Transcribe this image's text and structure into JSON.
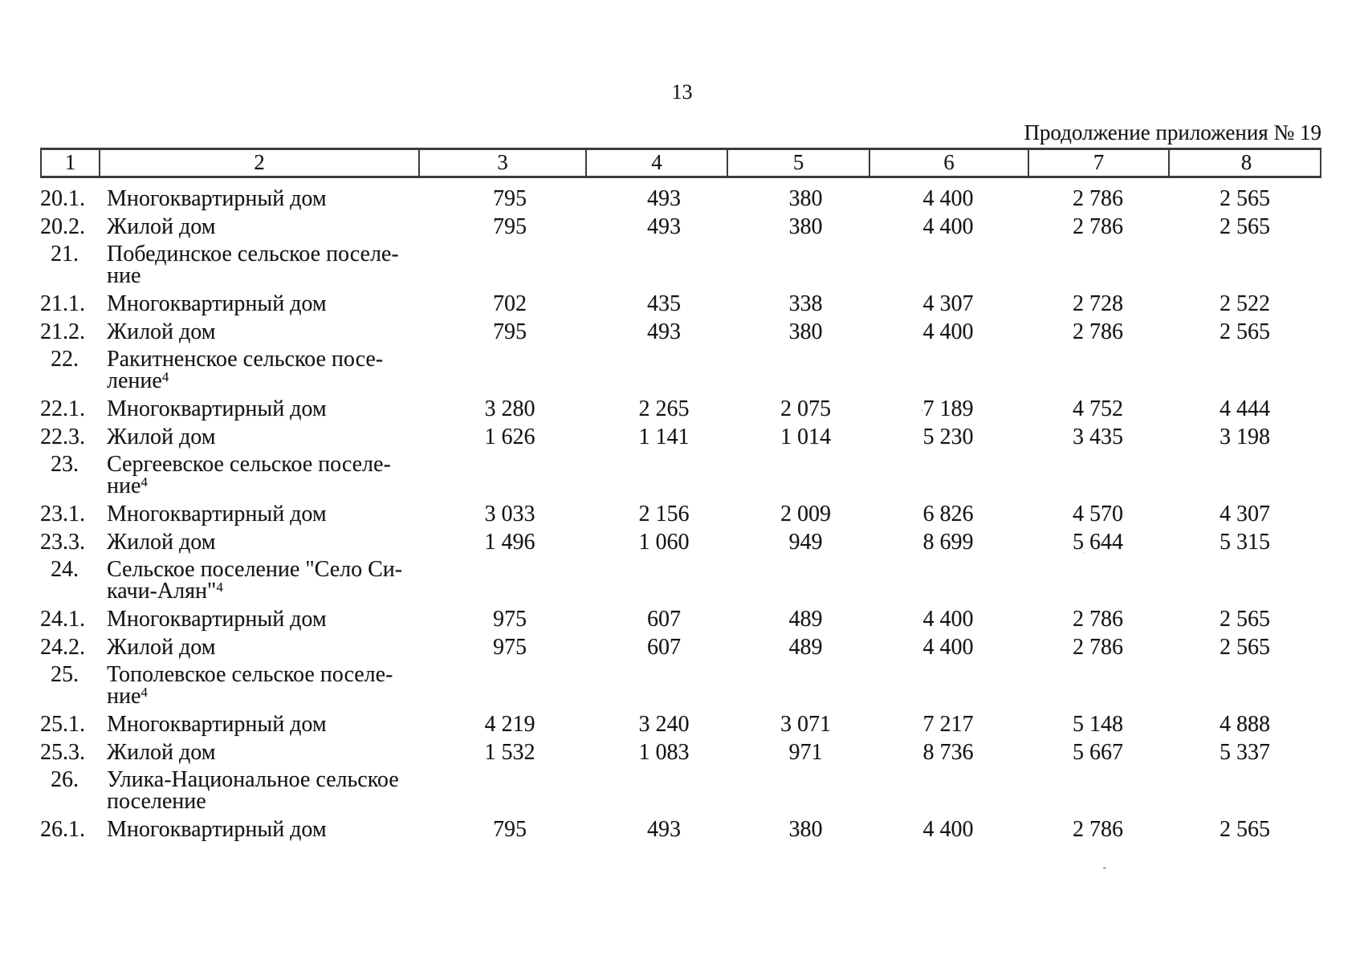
{
  "page": {
    "number": "13",
    "continuation": "Продолжение приложения № 19"
  },
  "table": {
    "header": [
      "1",
      "2",
      "3",
      "4",
      "5",
      "6",
      "7",
      "8"
    ],
    "rows": [
      {
        "num": "20.1.",
        "name": "Многоквартирный дом",
        "values": [
          "795",
          "493",
          "380",
          "4 400",
          "2 786",
          "2 565"
        ]
      },
      {
        "num": "20.2.",
        "name": "Жилой дом",
        "values": [
          "795",
          "493",
          "380",
          "4 400",
          "2 786",
          "2 565"
        ]
      },
      {
        "num": "21.",
        "name_lines": [
          "Побединское сельское поселе-",
          "ние"
        ],
        "sup": "",
        "values": []
      },
      {
        "num": "21.1.",
        "name": "Многоквартирный дом",
        "values": [
          "702",
          "435",
          "338",
          "4 307",
          "2 728",
          "2 522"
        ]
      },
      {
        "num": "21.2.",
        "name": "Жилой дом",
        "values": [
          "795",
          "493",
          "380",
          "4 400",
          "2 786",
          "2 565"
        ]
      },
      {
        "num": "22.",
        "name_lines": [
          "Ракитненское сельское посе-",
          "ление"
        ],
        "sup": "4",
        "values": []
      },
      {
        "num": "22.1.",
        "name": "Многоквартирный дом",
        "values": [
          "3 280",
          "2 265",
          "2 075",
          "7 189",
          "4 752",
          "4 444"
        ]
      },
      {
        "num": "22.3.",
        "name": "Жилой дом",
        "values": [
          "1 626",
          "1 141",
          "1 014",
          "5 230",
          "3 435",
          "3 198"
        ]
      },
      {
        "num": "23.",
        "name_lines": [
          "Сергеевское сельское поселе-",
          "ние"
        ],
        "sup": "4",
        "values": []
      },
      {
        "num": "23.1.",
        "name": "Многоквартирный дом",
        "values": [
          "3 033",
          "2 156",
          "2 009",
          "6 826",
          "4 570",
          "4 307"
        ]
      },
      {
        "num": "23.3.",
        "name": "Жилой дом",
        "values": [
          "1 496",
          "1 060",
          "949",
          "8 699",
          "5 644",
          "5 315"
        ]
      },
      {
        "num": "24.",
        "name_lines": [
          "Сельское поселение \"Село Си-",
          "качи-Алян\""
        ],
        "sup": "4",
        "values": []
      },
      {
        "num": "24.1.",
        "name": "Многоквартирный дом",
        "values": [
          "975",
          "607",
          "489",
          "4 400",
          "2 786",
          "2 565"
        ]
      },
      {
        "num": "24.2.",
        "name": "Жилой дом",
        "values": [
          "975",
          "607",
          "489",
          "4 400",
          "2 786",
          "2 565"
        ]
      },
      {
        "num": "25.",
        "name_lines": [
          "Тополевское сельское поселе-",
          "ние"
        ],
        "sup": "4",
        "values": []
      },
      {
        "num": "25.1.",
        "name": "Многоквартирный дом",
        "values": [
          "4 219",
          "3 240",
          "3 071",
          "7 217",
          "5 148",
          "4 888"
        ]
      },
      {
        "num": "25.3.",
        "name": "Жилой дом",
        "values": [
          "1 532",
          "1 083",
          "971",
          "8 736",
          "5 667",
          "5 337"
        ]
      },
      {
        "num": "26.",
        "name_lines": [
          "Улика-Национальное сельское",
          "поселение"
        ],
        "sup": "",
        "values": []
      },
      {
        "num": "26.1.",
        "name": "Многоквартирный дом",
        "values": [
          "795",
          "493",
          "380",
          "4 400",
          "2 786",
          "2 565"
        ]
      }
    ]
  }
}
